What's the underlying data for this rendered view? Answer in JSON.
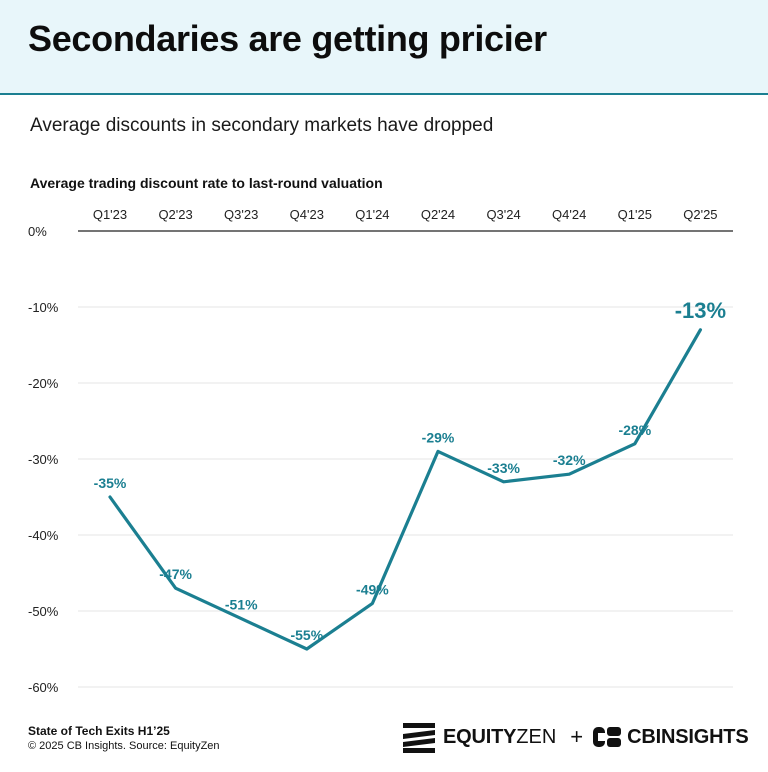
{
  "header": {
    "title": "Secondaries are getting pricier"
  },
  "subtitle": "Average discounts in secondary markets have dropped",
  "chart_data": {
    "type": "line",
    "title": "Average trading discount rate to last-round valuation",
    "categories": [
      "Q1'23",
      "Q2'23",
      "Q3'23",
      "Q4'23",
      "Q1'24",
      "Q2'24",
      "Q3'24",
      "Q4'24",
      "Q1'25",
      "Q2'25"
    ],
    "series": [
      {
        "values": [
          -35,
          -47,
          -51,
          -55,
          -49,
          -29,
          -33,
          -32,
          -28,
          -13
        ]
      }
    ],
    "data_labels": [
      "-35%",
      "-47%",
      "-51%",
      "-55%",
      "-49%",
      "-29%",
      "-33%",
      "-32%",
      "-28%",
      "-13%"
    ],
    "y_ticks": [
      0,
      -10,
      -20,
      -30,
      -40,
      -50,
      -60
    ],
    "y_tick_labels": [
      "0%",
      "-10%",
      "-20%",
      "-30%",
      "-40%",
      "-50%",
      "-60%"
    ],
    "ylim": [
      -60,
      0
    ],
    "x_axis_position": "top",
    "grid": true,
    "line_color": "#1b7f91",
    "highlight_last_point": true
  },
  "footer": {
    "report": "State of Tech Exits H1’25",
    "source": "© 2025 CB Insights. Source: EquityZen"
  },
  "logos": {
    "equityzen_bold": "EQUITY",
    "equityzen_light": "ZEN",
    "plus": "+",
    "cbinsights": "CBINSIGHTS",
    "equityzen_icon": "equityzen-stripes-icon",
    "cbinsights_icon": "cbinsights-c-icon"
  }
}
